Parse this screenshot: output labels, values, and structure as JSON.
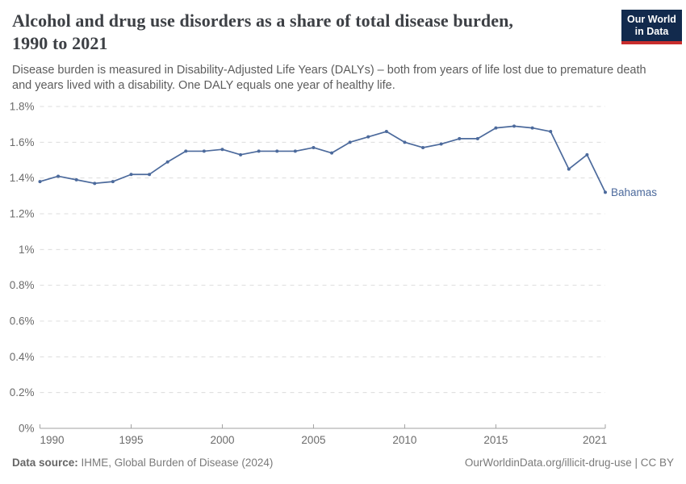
{
  "header": {
    "title_line1": "Alcohol and drug use disorders as a share of total disease burden,",
    "title_line2": "1990 to 2021",
    "subtitle": "Disease burden is measured in Disability-Adjusted Life Years (DALYs) – both from years of life lost due to premature death and years lived with a disability. One DALY equals one year of healthy life.",
    "logo_line1": "Our World",
    "logo_line2": "in Data"
  },
  "chart_data": {
    "type": "line",
    "title": "Alcohol and drug use disorders as a share of total disease burden, 1990 to 2021",
    "xlabel": "",
    "ylabel": "",
    "unit": "%",
    "ylim": [
      0,
      1.8
    ],
    "grid": "horizontal-dashed",
    "legend_position": "end-of-line-label",
    "x": [
      1990,
      1991,
      1992,
      1993,
      1994,
      1995,
      1996,
      1997,
      1998,
      1999,
      2000,
      2001,
      2002,
      2003,
      2004,
      2005,
      2006,
      2007,
      2008,
      2009,
      2010,
      2011,
      2012,
      2013,
      2014,
      2015,
      2016,
      2017,
      2018,
      2019,
      2020,
      2021
    ],
    "series": [
      {
        "name": "Bahamas",
        "values": [
          1.38,
          1.41,
          1.39,
          1.37,
          1.38,
          1.42,
          1.42,
          1.49,
          1.55,
          1.55,
          1.56,
          1.53,
          1.55,
          1.55,
          1.55,
          1.57,
          1.54,
          1.6,
          1.63,
          1.66,
          1.6,
          1.57,
          1.59,
          1.62,
          1.62,
          1.68,
          1.69,
          1.68,
          1.66,
          1.45,
          1.53,
          1.32
        ]
      }
    ],
    "yticks": [
      1.8,
      1.6,
      1.4,
      1.2,
      1.0,
      0.8,
      0.6,
      0.4,
      0.2,
      0
    ],
    "ytick_labels": [
      "1.8%",
      "1.6%",
      "1.4%",
      "1.2%",
      "1%",
      "0.8%",
      "0.6%",
      "0.4%",
      "0.2%",
      "0%"
    ],
    "xticks": [
      1990,
      1995,
      2000,
      2005,
      2010,
      2015,
      2021
    ],
    "xtick_labels": [
      "1990",
      "1995",
      "2000",
      "2005",
      "2010",
      "2015",
      "2021"
    ],
    "line_color": "#4C6A9C",
    "gridline_color": "#dcdcdc",
    "axis_color": "#a1a1a1"
  },
  "footer": {
    "source_label": "Data source:",
    "source_value": " IHME, Global Burden of Disease (2024)",
    "link": "OurWorldinData.org/illicit-drug-use | CC BY"
  }
}
